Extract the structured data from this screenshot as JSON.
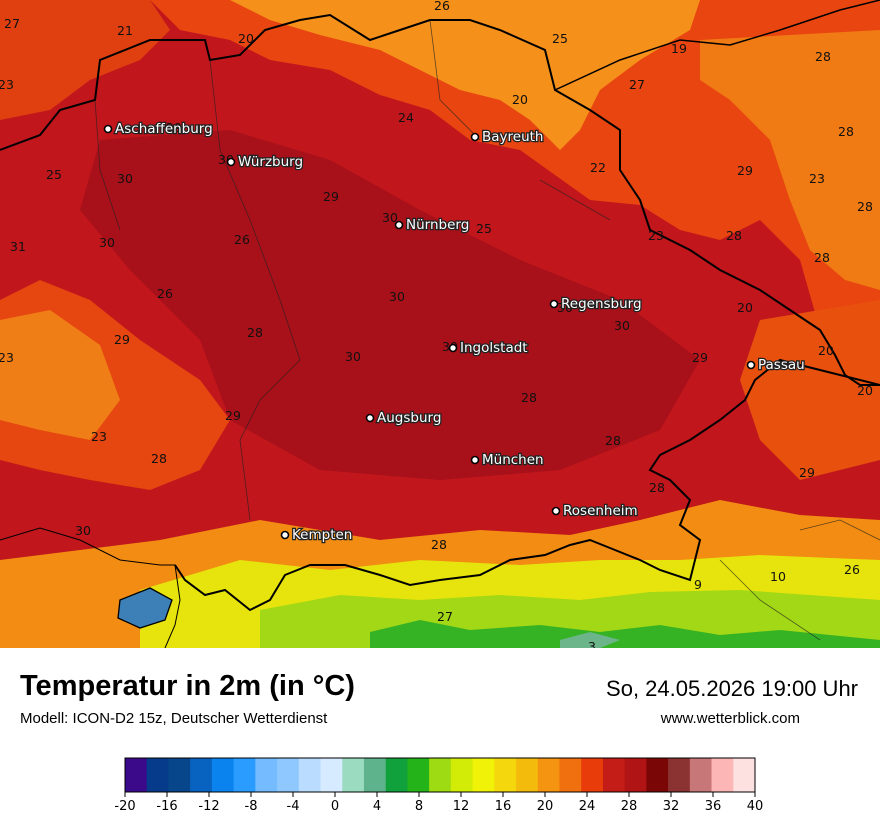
{
  "title": "Temperatur in 2m (in °C)",
  "model": "Modell: ICON-D2 15z, Deutscher Wetterdienst",
  "datetime": "So, 24.05.2026 19:00 Uhr",
  "website": "www.wetterblick.com",
  "colors": {
    "map_background": "#c0161c",
    "warm_orange": "#ea5a0c",
    "orange": "#f59513",
    "alpine_yellow": "#e0e80a",
    "alpine_green": "#35b323",
    "border_line": "#000000"
  },
  "cities": [
    {
      "name": "Aschaffenburg"
    },
    {
      "name": "Würzburg"
    },
    {
      "name": "Bayreuth"
    },
    {
      "name": "Nürnberg"
    },
    {
      "name": "Regensburg"
    },
    {
      "name": "Ingolstadt"
    },
    {
      "name": "Passau"
    },
    {
      "name": "Augsburg"
    },
    {
      "name": "München"
    },
    {
      "name": "Rosenheim"
    },
    {
      "name": "Kempten"
    }
  ],
  "values": [
    "27",
    "21",
    "20",
    "26",
    "25",
    "19",
    "28",
    "23",
    "24",
    "20",
    "27",
    "28",
    "29",
    "30",
    "25",
    "30",
    "22",
    "29",
    "23",
    "28",
    "31",
    "29",
    "30",
    "26",
    "30",
    "25",
    "23",
    "28",
    "28",
    "26",
    "30",
    "30",
    "23",
    "28",
    "30",
    "20",
    "29",
    "30",
    "30",
    "20",
    "20",
    "29",
    "28",
    "23",
    "29",
    "28",
    "28",
    "29",
    "28",
    "30",
    "28",
    "9",
    "10",
    "26",
    "27",
    "3"
  ],
  "legend": {
    "ticks": [
      "-20",
      "-16",
      "-12",
      "-8",
      "-4",
      "0",
      "4",
      "8",
      "12",
      "16",
      "20",
      "24",
      "28",
      "32",
      "36",
      "40"
    ],
    "colors": [
      "#3a0a8a",
      "#063b8c",
      "#07468a",
      "#0862c0",
      "#0a83ef",
      "#2a9cff",
      "#74bbff",
      "#8ec8ff",
      "#b9dcff",
      "#d6ebff",
      "#9bdcc0",
      "#5fb38c",
      "#10a03c",
      "#24b319",
      "#9fdb12",
      "#d3ec07",
      "#f0f208",
      "#f4d70c",
      "#f3bc0c",
      "#f49411",
      "#f06f0e",
      "#e83c0b",
      "#c41c16",
      "#b01414",
      "#7b0606",
      "#8b3232",
      "#c77777",
      "#fdb6b6",
      "#fde0e0"
    ]
  }
}
